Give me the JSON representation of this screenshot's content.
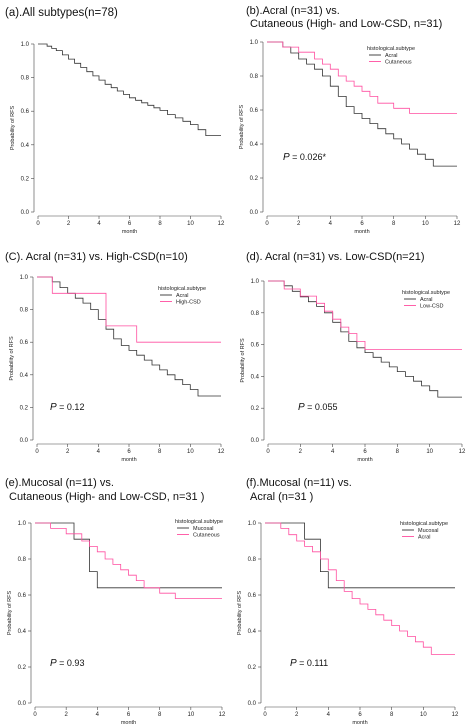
{
  "colors": {
    "black": "#333333",
    "pink": "#ff4fa0",
    "axis": "#444444"
  },
  "chart_data": [
    {
      "type": "line",
      "title": "(a).All subtypes(n=78)",
      "xlabel": "month",
      "ylabel": "Probability of RFS",
      "xlim": [
        0,
        12
      ],
      "ylim": [
        0,
        1
      ],
      "xticks": [
        0,
        2,
        4,
        6,
        8,
        10,
        12
      ],
      "yticks": [
        "0.0",
        "0.2",
        "0.4",
        "0.6",
        "0.8",
        "1.0"
      ],
      "legend_title": "",
      "p_value": "",
      "series": [
        {
          "color": "#333333",
          "x": [
            0,
            0.6,
            0.9,
            1.2,
            1.6,
            2.0,
            2.4,
            2.8,
            3.2,
            3.6,
            4.0,
            4.4,
            4.8,
            5.2,
            5.6,
            6.0,
            6.4,
            6.8,
            7.2,
            7.6,
            8.0,
            8.5,
            9.0,
            9.5,
            10.0,
            10.5,
            11.0,
            12.0
          ],
          "y": [
            1.0,
            0.987,
            0.974,
            0.961,
            0.935,
            0.91,
            0.885,
            0.86,
            0.835,
            0.81,
            0.785,
            0.76,
            0.74,
            0.72,
            0.7,
            0.68,
            0.665,
            0.65,
            0.635,
            0.62,
            0.605,
            0.58,
            0.56,
            0.54,
            0.52,
            0.49,
            0.455,
            0.455
          ]
        }
      ]
    },
    {
      "type": "line",
      "title": "(b).Acral (n=31) vs.",
      "title_line2": "Cutaneous (High- and Low-CSD, n=31)",
      "xlabel": "month",
      "ylabel": "Probability of RFS",
      "xlim": [
        0,
        12
      ],
      "ylim": [
        0,
        1
      ],
      "xticks": [
        0,
        2,
        4,
        6,
        8,
        10,
        12
      ],
      "yticks": [
        "0.0",
        "0.2",
        "0.4",
        "0.6",
        "0.8",
        "1.0"
      ],
      "legend_title": "histological.subtype",
      "p_value": "0.026*",
      "series": [
        {
          "name": "Acral",
          "color": "#333333",
          "x": [
            0,
            1.0,
            1.5,
            2.0,
            2.5,
            3.0,
            3.5,
            4.0,
            4.5,
            5.0,
            5.5,
            6.0,
            6.5,
            7.0,
            7.5,
            8.0,
            8.5,
            9.0,
            9.5,
            10.0,
            10.5,
            12.0
          ],
          "y": [
            1.0,
            0.97,
            0.935,
            0.9,
            0.87,
            0.84,
            0.8,
            0.74,
            0.68,
            0.62,
            0.58,
            0.55,
            0.52,
            0.49,
            0.46,
            0.43,
            0.4,
            0.37,
            0.34,
            0.31,
            0.27,
            0.27
          ]
        },
        {
          "name": "Cutaneous",
          "color": "#ff4fa0",
          "x": [
            0,
            1.0,
            2.0,
            3.0,
            3.5,
            4.0,
            4.5,
            5.0,
            5.5,
            6.0,
            6.5,
            7.0,
            8.0,
            9.0,
            12.0
          ],
          "y": [
            1.0,
            0.97,
            0.94,
            0.9,
            0.87,
            0.84,
            0.8,
            0.77,
            0.74,
            0.71,
            0.68,
            0.64,
            0.61,
            0.58,
            0.58
          ]
        }
      ]
    },
    {
      "type": "line",
      "title": "(C). Acral (n=31) vs. High-CSD(n=10)",
      "xlabel": "month",
      "ylabel": "Probability of RFS",
      "xlim": [
        0,
        12
      ],
      "ylim": [
        0,
        1
      ],
      "xticks": [
        0,
        2,
        4,
        6,
        8,
        10,
        12
      ],
      "yticks": [
        "0.0",
        "0.2",
        "0.4",
        "0.6",
        "0.8",
        "1.0"
      ],
      "legend_title": "histological.subtype",
      "p_value": "0.12",
      "series": [
        {
          "name": "Acral",
          "color": "#333333",
          "x": [
            0,
            1.0,
            1.5,
            2.0,
            2.5,
            3.0,
            3.5,
            4.0,
            4.5,
            5.0,
            5.5,
            6.0,
            6.5,
            7.0,
            7.5,
            8.0,
            8.5,
            9.0,
            9.5,
            10.0,
            10.5,
            12.0
          ],
          "y": [
            1.0,
            0.97,
            0.935,
            0.9,
            0.87,
            0.84,
            0.8,
            0.74,
            0.68,
            0.62,
            0.58,
            0.55,
            0.52,
            0.49,
            0.46,
            0.43,
            0.4,
            0.37,
            0.34,
            0.31,
            0.27,
            0.27
          ]
        },
        {
          "name": "High-CSD",
          "color": "#ff4fa0",
          "x": [
            0,
            1.0,
            4.0,
            4.5,
            6.5,
            12.0
          ],
          "y": [
            1.0,
            0.9,
            0.9,
            0.7,
            0.6,
            0.6
          ]
        }
      ]
    },
    {
      "type": "line",
      "title": "(d). Acral (n=31) vs. Low-CSD(n=21)",
      "xlabel": "month",
      "ylabel": "Probability of RFS",
      "xlim": [
        0,
        12
      ],
      "ylim": [
        0,
        1
      ],
      "xticks": [
        0,
        2,
        4,
        6,
        8,
        10,
        12
      ],
      "yticks": [
        "0.0",
        "0.2",
        "0.4",
        "0.6",
        "0.8",
        "1.0"
      ],
      "legend_title": "histological.subtype",
      "p_value": "0.055",
      "series": [
        {
          "name": "Acral",
          "color": "#333333",
          "x": [
            0,
            1.0,
            1.5,
            2.0,
            2.5,
            3.0,
            3.5,
            4.0,
            4.5,
            5.0,
            5.5,
            6.0,
            6.5,
            7.0,
            7.5,
            8.0,
            8.5,
            9.0,
            9.5,
            10.0,
            10.5,
            12.0
          ],
          "y": [
            1.0,
            0.97,
            0.935,
            0.9,
            0.87,
            0.84,
            0.8,
            0.74,
            0.68,
            0.62,
            0.58,
            0.55,
            0.52,
            0.49,
            0.46,
            0.43,
            0.4,
            0.37,
            0.34,
            0.31,
            0.27,
            0.27
          ]
        },
        {
          "name": "Low-CSD",
          "color": "#ff4fa0",
          "x": [
            0,
            1.0,
            2.0,
            3.0,
            3.5,
            4.0,
            4.5,
            5.0,
            5.5,
            6.0,
            7.0,
            12.0
          ],
          "y": [
            1.0,
            0.95,
            0.905,
            0.86,
            0.81,
            0.76,
            0.71,
            0.67,
            0.62,
            0.57,
            0.57,
            0.57
          ]
        }
      ]
    },
    {
      "type": "line",
      "title": "(e).Mucosal  (n=11) vs.",
      "title_line2": "Cutaneous (High- and Low-CSD, n=31 )",
      "xlabel": "month",
      "ylabel": "Probability of RFS",
      "xlim": [
        0,
        12
      ],
      "ylim": [
        0,
        1
      ],
      "xticks": [
        0,
        2,
        4,
        6,
        8,
        10,
        12
      ],
      "yticks": [
        "0.0",
        "0.2",
        "0.4",
        "0.6",
        "0.8",
        "1.0"
      ],
      "legend_title": "histological.subtype",
      "p_value": "0.93",
      "series": [
        {
          "name": "Mucosal",
          "color": "#333333",
          "x": [
            0,
            2.0,
            2.5,
            3.5,
            4.0,
            12.0
          ],
          "y": [
            1.0,
            1.0,
            0.91,
            0.73,
            0.64,
            0.64
          ]
        },
        {
          "name": "Cutaneous",
          "color": "#ff4fa0",
          "x": [
            0,
            1.0,
            2.0,
            3.0,
            3.5,
            4.0,
            4.5,
            5.0,
            5.5,
            6.0,
            6.5,
            7.0,
            8.0,
            9.0,
            12.0
          ],
          "y": [
            1.0,
            0.97,
            0.94,
            0.9,
            0.87,
            0.84,
            0.8,
            0.77,
            0.74,
            0.71,
            0.68,
            0.64,
            0.61,
            0.58,
            0.58
          ]
        }
      ]
    },
    {
      "type": "line",
      "title": "(f).Mucosal  (n=11) vs.",
      "title_line2": "Acral (n=31 )",
      "xlabel": "month",
      "ylabel": "Probability of RFS",
      "xlim": [
        0,
        12
      ],
      "ylim": [
        0,
        1
      ],
      "xticks": [
        0,
        2,
        4,
        6,
        8,
        10,
        12
      ],
      "yticks": [
        "0.0",
        "0.2",
        "0.4",
        "0.6",
        "0.8",
        "1.0"
      ],
      "legend_title": "histological.subtype",
      "p_value": "0.111",
      "series": [
        {
          "name": "Mucosal",
          "color": "#333333",
          "x": [
            0,
            2.0,
            2.5,
            3.5,
            4.0,
            12.0
          ],
          "y": [
            1.0,
            1.0,
            0.91,
            0.73,
            0.64,
            0.64
          ]
        },
        {
          "name": "Acral",
          "color": "#ff4fa0",
          "x": [
            0,
            1.0,
            1.5,
            2.0,
            2.5,
            3.0,
            3.5,
            4.0,
            4.5,
            5.0,
            5.5,
            6.0,
            6.5,
            7.0,
            7.5,
            8.0,
            8.5,
            9.0,
            9.5,
            10.0,
            10.5,
            11.0,
            12.0
          ],
          "y": [
            1.0,
            0.97,
            0.935,
            0.9,
            0.87,
            0.84,
            0.8,
            0.74,
            0.68,
            0.62,
            0.58,
            0.55,
            0.52,
            0.49,
            0.46,
            0.43,
            0.4,
            0.37,
            0.34,
            0.31,
            0.27,
            0.27,
            0.27
          ]
        }
      ]
    }
  ]
}
